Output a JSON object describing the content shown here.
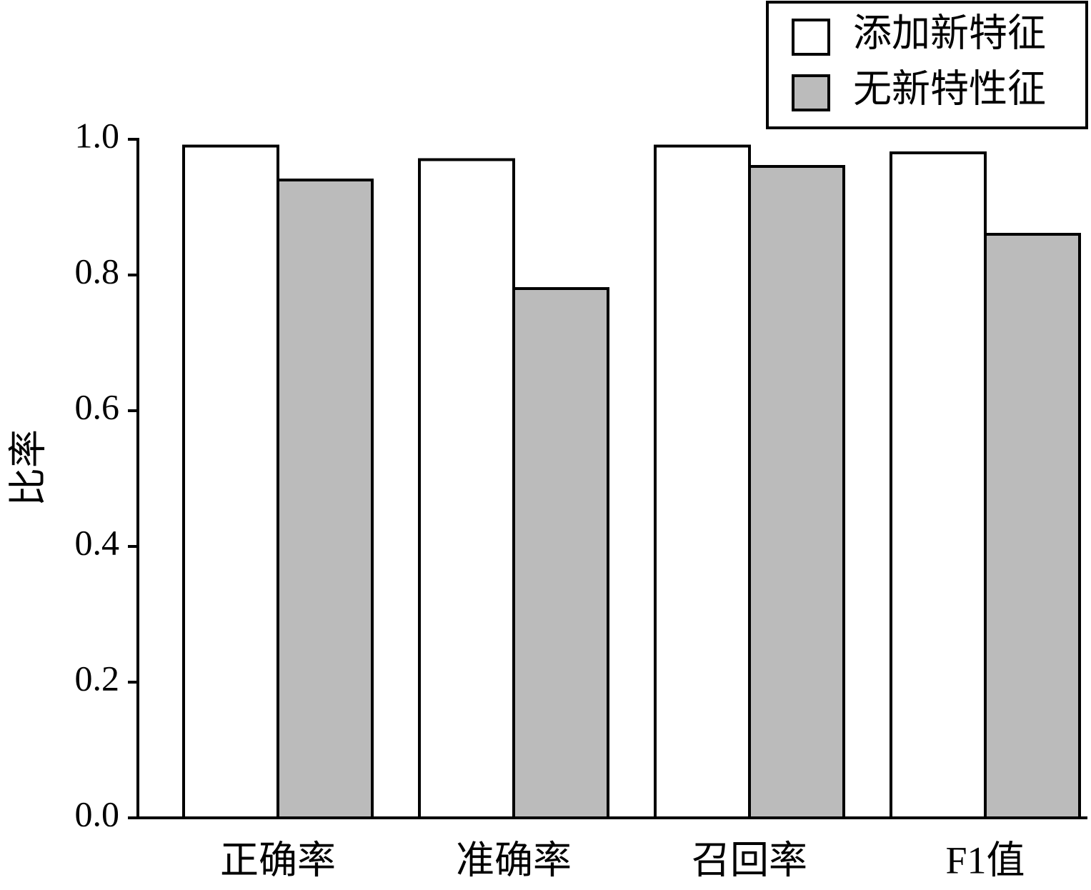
{
  "chart_data": {
    "type": "bar",
    "ylabel": "比率",
    "categories": [
      "正确率",
      "准确率",
      "召回率",
      "F1值"
    ],
    "series": [
      {
        "name": "添加新特征",
        "color": "#ffffff",
        "values": [
          0.99,
          0.97,
          0.99,
          0.98
        ]
      },
      {
        "name": "无新特性征",
        "color": "#bbbbbb",
        "values": [
          0.94,
          0.78,
          0.96,
          0.86
        ]
      }
    ],
    "ylim": [
      0,
      1.0
    ],
    "yticks": [
      {
        "value": 0,
        "label": "0.0"
      },
      {
        "value": 0.2,
        "label": "0.2"
      },
      {
        "value": 0.4,
        "label": "0.4"
      },
      {
        "value": 0.6,
        "label": "0.6"
      },
      {
        "value": 0.8,
        "label": "0.8"
      },
      {
        "value": 1.0,
        "label": "1.0"
      }
    ],
    "grid": false,
    "legend": "upper right"
  }
}
